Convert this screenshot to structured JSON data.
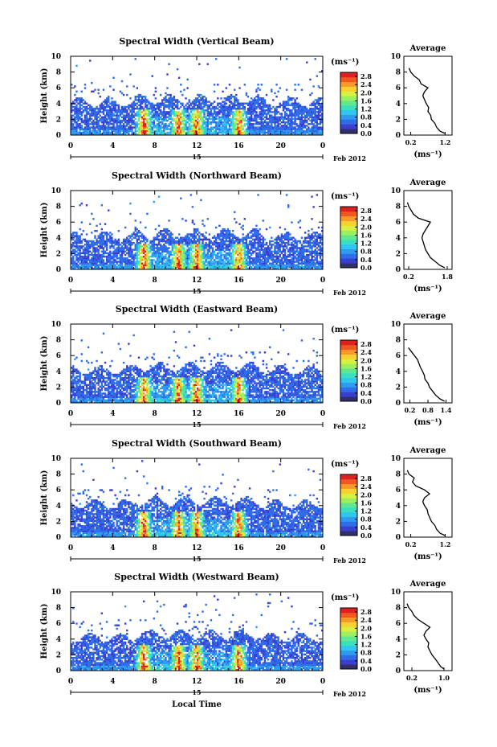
{
  "chart_data": {
    "type": "heatmap",
    "colorbar": {
      "unit": "(ms⁻¹)",
      "ticks": [
        "2.8",
        "2.4",
        "2.0",
        "1.6",
        "1.2",
        "0.8",
        "0.4",
        "0.0"
      ],
      "range": [
        0,
        3.0
      ],
      "colors": [
        "#30306a",
        "#3a3fd2",
        "#2f6ce8",
        "#2f9bf0",
        "#2fc6f0",
        "#38e0c0",
        "#5fe890",
        "#9cf060",
        "#d8f040",
        "#f8d030",
        "#f89a28",
        "#f05820",
        "#e02020"
      ]
    },
    "x_axis": {
      "ticks": [
        "0",
        "4",
        "8",
        "12",
        "16",
        "20",
        "0"
      ],
      "range": [
        0,
        24
      ],
      "date_day": "15",
      "date_month": "Feb 2012",
      "label": "Local Time"
    },
    "y_axis": {
      "label": "Height (km)",
      "ticks": [
        "0",
        "2",
        "4",
        "6",
        "8",
        "10"
      ],
      "range": [
        0,
        10
      ]
    },
    "panels": [
      {
        "title": "Spectral Width (Vertical Beam)",
        "average": {
          "title": "Average",
          "xticks": [
            "0.2",
            "1.2"
          ],
          "xrange": [
            0.0,
            1.4
          ],
          "xlabel": "(ms⁻¹)",
          "heights": [
            0.2,
            0.5,
            1.0,
            1.5,
            2.0,
            2.5,
            3.0,
            3.5,
            4.0,
            4.5,
            5.0,
            5.5,
            6.0,
            6.5,
            7.0,
            7.5,
            8.0,
            8.5
          ],
          "values": [
            1.2,
            1.05,
            0.95,
            0.9,
            0.8,
            0.78,
            0.7,
            0.72,
            0.65,
            0.6,
            0.55,
            0.6,
            0.7,
            0.5,
            0.45,
            0.3,
            0.2,
            0.15
          ]
        }
      },
      {
        "title": "Spectral Width (Northward Beam)",
        "average": {
          "title": "Average",
          "xticks": [
            "0.2",
            "1.8"
          ],
          "xrange": [
            0.0,
            2.0
          ],
          "xlabel": "(ms⁻¹)",
          "heights": [
            0.2,
            0.5,
            1.0,
            1.5,
            2.0,
            2.5,
            3.0,
            3.5,
            4.0,
            4.5,
            5.0,
            5.5,
            6.0,
            6.5,
            7.0,
            7.5,
            8.0,
            8.5
          ],
          "values": [
            1.7,
            1.5,
            1.3,
            1.1,
            1.0,
            0.9,
            0.85,
            0.8,
            0.75,
            0.8,
            0.9,
            1.0,
            1.1,
            0.6,
            0.4,
            0.3,
            0.2,
            0.15
          ]
        }
      },
      {
        "title": "Spectral Width (Eastward Beam)",
        "average": {
          "title": "Average",
          "xticks": [
            "0.2",
            "0.8",
            "1.4"
          ],
          "xrange": [
            0.0,
            1.6
          ],
          "xlabel": "(ms⁻¹)",
          "heights": [
            0.2,
            0.5,
            1.0,
            1.5,
            2.0,
            2.5,
            3.0,
            3.5,
            4.0,
            4.5,
            5.0,
            5.5,
            6.0,
            6.5,
            7.0
          ],
          "values": [
            1.35,
            1.2,
            1.05,
            0.95,
            0.85,
            0.8,
            0.7,
            0.68,
            0.62,
            0.55,
            0.5,
            0.45,
            0.35,
            0.25,
            0.15
          ]
        }
      },
      {
        "title": "Spectral Width (Southward Beam)",
        "average": {
          "title": "Average",
          "xticks": [
            "0.2",
            "1.2"
          ],
          "xrange": [
            0.0,
            1.4
          ],
          "xlabel": "(ms⁻¹)",
          "heights": [
            0.2,
            0.5,
            1.0,
            1.5,
            2.0,
            2.5,
            3.0,
            3.5,
            4.0,
            4.5,
            5.0,
            5.5,
            6.0,
            6.5,
            7.0,
            7.5,
            8.0,
            8.5
          ],
          "values": [
            1.2,
            1.05,
            0.95,
            0.9,
            0.8,
            0.75,
            0.7,
            0.68,
            0.6,
            0.55,
            0.6,
            0.75,
            0.6,
            0.35,
            0.25,
            0.3,
            0.15,
            0.1
          ]
        }
      },
      {
        "title": "Spectral Width (Westward Beam)",
        "average": {
          "title": "Average",
          "xticks": [
            "0.2",
            "1.0"
          ],
          "xrange": [
            0.0,
            1.2
          ],
          "xlabel": "(ms⁻¹)",
          "heights": [
            0.2,
            0.5,
            1.0,
            1.5,
            2.0,
            2.5,
            3.0,
            3.5,
            4.0,
            4.5,
            5.0,
            5.5,
            6.0,
            6.5,
            7.0,
            7.5,
            8.0,
            8.5
          ],
          "values": [
            1.0,
            0.92,
            0.85,
            0.78,
            0.7,
            0.65,
            0.6,
            0.62,
            0.55,
            0.5,
            0.55,
            0.65,
            0.5,
            0.35,
            0.25,
            0.2,
            0.12,
            0.08
          ]
        }
      }
    ]
  }
}
